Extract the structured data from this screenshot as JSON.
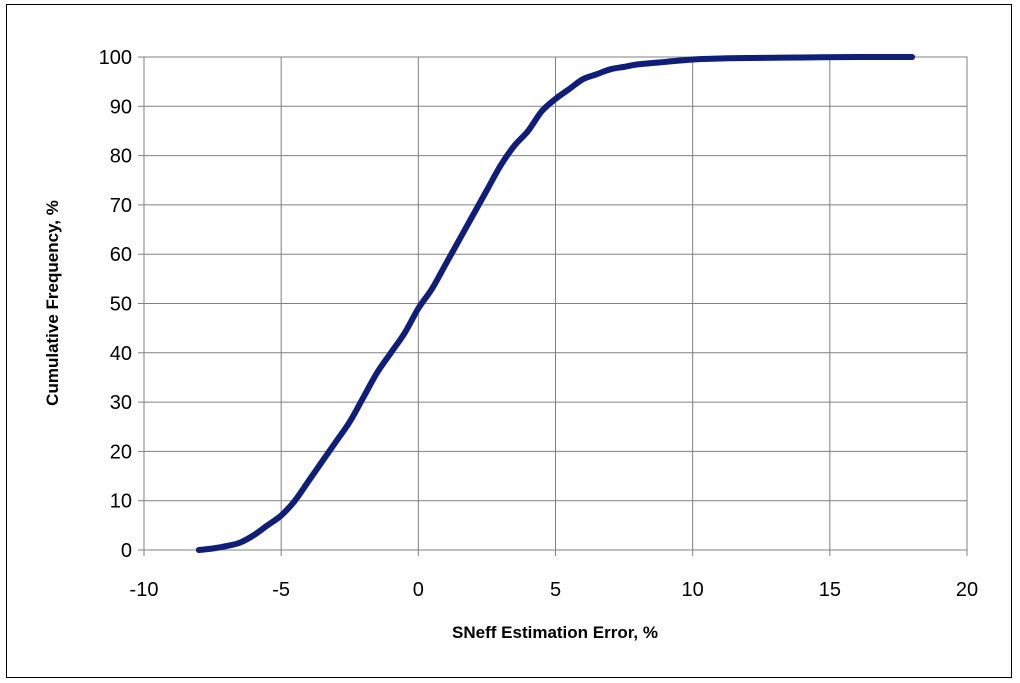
{
  "chart_data": {
    "type": "line",
    "title": "",
    "xlabel": "SNeff Estimation Error, %",
    "ylabel": "Cumulative Frequency, %",
    "xlim": [
      -10,
      20
    ],
    "ylim": [
      0,
      100
    ],
    "xticks": [
      -10,
      -5,
      0,
      5,
      10,
      15,
      20
    ],
    "yticks": [
      0,
      10,
      20,
      30,
      40,
      50,
      60,
      70,
      80,
      90,
      100
    ],
    "grid": true,
    "legend": "none",
    "series": [
      {
        "color": "#0f1e78",
        "x": [
          -8,
          -7.5,
          -7,
          -6.5,
          -6,
          -5.5,
          -5,
          -4.5,
          -4,
          -3.5,
          -3,
          -2.5,
          -2,
          -1.5,
          -1,
          -0.5,
          0,
          0.5,
          1,
          1.5,
          2,
          2.5,
          3,
          3.5,
          4,
          4.5,
          5,
          5.5,
          6,
          6.5,
          7,
          7.5,
          8,
          9,
          10,
          11,
          12,
          14,
          16,
          18
        ],
        "y": [
          0,
          0.3,
          0.8,
          1.5,
          3,
          5,
          7,
          10,
          14,
          18,
          22,
          26,
          31,
          36,
          40,
          44,
          49,
          53,
          58,
          63,
          68,
          73,
          78,
          82,
          85,
          89,
          91.5,
          93.5,
          95.5,
          96.5,
          97.5,
          98,
          98.5,
          99,
          99.5,
          99.7,
          99.8,
          99.9,
          100,
          100
        ]
      }
    ]
  }
}
